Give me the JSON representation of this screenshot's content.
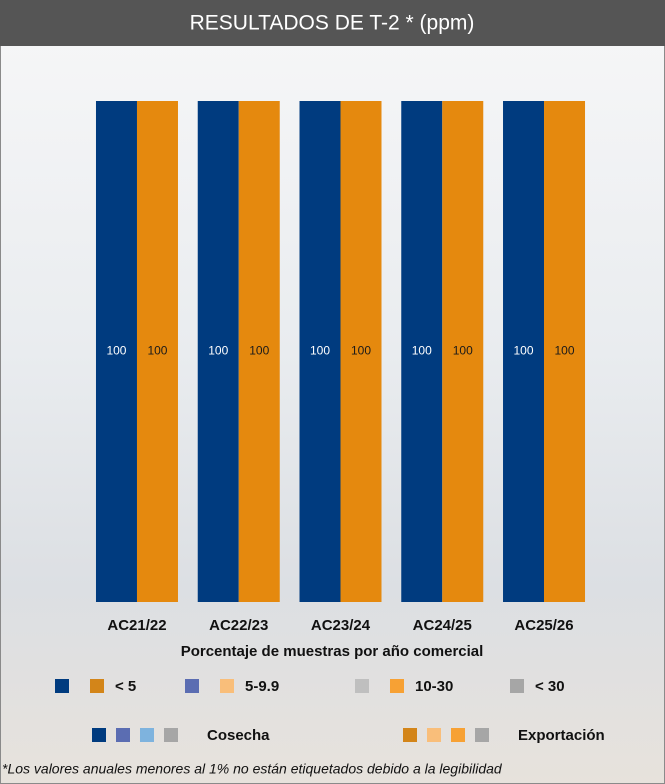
{
  "chart_data": {
    "type": "bar",
    "title": "RESULTADOS DE T-2 * (ppm)",
    "x_label": "Porcentaje de muestras por año comercial",
    "categories": [
      "AC21/22",
      "AC22/23",
      "AC23/24",
      "AC24/25",
      "AC25/26"
    ],
    "series": [
      {
        "name": "Cosecha",
        "color": "#003b7f",
        "label_color": "#ffffff",
        "values": [
          100,
          100,
          100,
          100,
          100
        ],
        "legend_colors": [
          "#003b7f",
          "#5b6db2",
          "#7eb3de",
          "#a6a6a6"
        ]
      },
      {
        "name": "Exportación",
        "color": "#e5890e",
        "label_color": "#1a1a1a",
        "values": [
          100,
          100,
          100,
          100,
          100
        ],
        "legend_colors": [
          "#d38519",
          "#f9be7a",
          "#f7a134",
          "#a6a6a6"
        ]
      }
    ],
    "levels": [
      {
        "label": "< 5",
        "colors": [
          "#003b7f",
          "#d38519"
        ]
      },
      {
        "label": "5-9.9",
        "colors": [
          "#5b6db2",
          "#f9be7a"
        ]
      },
      {
        "label": "10-30",
        "colors": [
          "#bfbfbf",
          "#f7a134"
        ]
      },
      {
        "label": "< 30",
        "colors": [
          "#a6a6a6"
        ]
      }
    ],
    "ylim": [
      0,
      100
    ],
    "footnote": "*Los valores anuales menores al 1% no están etiquetados debido a la legibilidad"
  }
}
